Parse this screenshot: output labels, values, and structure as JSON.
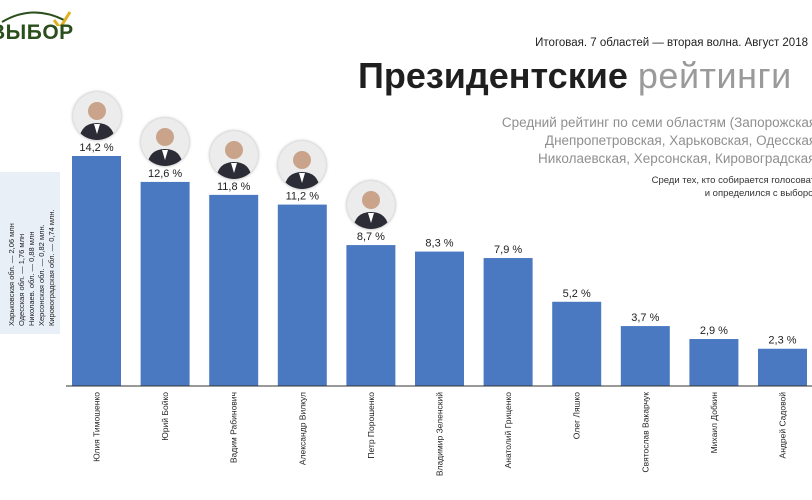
{
  "logo": {
    "text": "ВЫБОР"
  },
  "header": {
    "subtitle": "Итоговая. 7 областей — вторая волна. Август 2018",
    "title_bold": "Президентские",
    "title_light": "рейтинги",
    "description_lines": [
      "Средний рейтинг по семи областям (Запорожская,",
      "Днепропетровская, Харьковская, Одесская,",
      "Николаевская, Херсонская, Кировоградская)"
    ],
    "note_lines": [
      "Среди тех, кто собирается голосовать",
      "и определился с выбором"
    ]
  },
  "regions": [
    "Харьковская обл. — 2,06 млн",
    "Одесская обл. — 1,76 млн",
    "Николаев. обл. — 0,88 млн",
    "Херсонская обл. — 0,82 млн.",
    "Кировоградская обл. — 0,74 млн."
  ],
  "colors": {
    "bar": "#4a79c2",
    "baseline": "#333333",
    "regions_bg": "#e9eff7"
  },
  "chart_data": {
    "type": "bar",
    "title": "Президентские рейтинги",
    "categories": [
      "Юлия Тимошенко",
      "Юрий Бойко",
      "Вадим Рабинович",
      "Александр Вилкул",
      "Петр Порошенко",
      "Владимир Зеленский",
      "Анатолий Гриценко",
      "Олег Ляшко",
      "Святослав Вакарчук",
      "Михаил Добкин",
      "Андрей Садовой"
    ],
    "values": [
      14.2,
      12.6,
      11.8,
      11.2,
      8.7,
      8.3,
      7.9,
      5.2,
      3.7,
      2.9,
      2.3
    ],
    "value_labels": [
      "14,2 %",
      "12,6 %",
      "11,8 %",
      "11,2 %",
      "8,7 %",
      "8,3 %",
      "7,9 %",
      "5,2 %",
      "3,7 %",
      "2,9 %",
      "2,3 %"
    ],
    "ylim": [
      0,
      14.2
    ],
    "photo_candidates": [
      "Юлия Тимошенко",
      "Юрий Бойко",
      "Вадим Рабинович",
      "Александр Вилкул",
      "Петр Порошенко"
    ],
    "grid": false,
    "legend": "none"
  }
}
